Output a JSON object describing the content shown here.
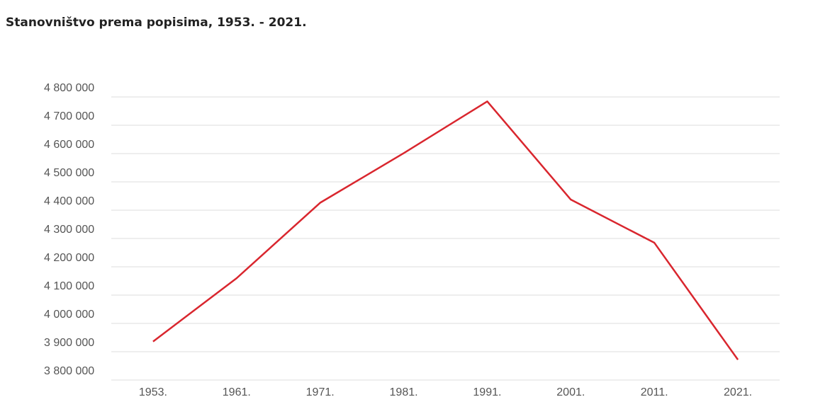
{
  "chart_data": {
    "type": "line",
    "title": "Stanovništvo prema popisima, 1953. - 2021.",
    "categories": [
      "1953.",
      "1961.",
      "1971.",
      "1981.",
      "1991.",
      "2001.",
      "2011.",
      "2021."
    ],
    "series": [
      {
        "name": "Stanovništvo",
        "color": "#d9262e",
        "values": [
          3936022,
          4159696,
          4426221,
          4601469,
          4784265,
          4437460,
          4284889,
          3871833
        ]
      }
    ],
    "ylim": [
      3800000,
      4800000
    ],
    "yticks": [
      {
        "value": 3800000,
        "label": "3 800 000"
      },
      {
        "value": 3900000,
        "label": "3 900 000"
      },
      {
        "value": 4000000,
        "label": "4 000 000"
      },
      {
        "value": 4100000,
        "label": "4 100 000"
      },
      {
        "value": 4200000,
        "label": "4 200 000"
      },
      {
        "value": 4300000,
        "label": "4 300 000"
      },
      {
        "value": 4400000,
        "label": "4 400 000"
      },
      {
        "value": 4500000,
        "label": "4 500 000"
      },
      {
        "value": 4600000,
        "label": "4 600 000"
      },
      {
        "value": 4700000,
        "label": "4 700 000"
      },
      {
        "value": 4800000,
        "label": "4 800 000"
      }
    ],
    "grid": true
  }
}
